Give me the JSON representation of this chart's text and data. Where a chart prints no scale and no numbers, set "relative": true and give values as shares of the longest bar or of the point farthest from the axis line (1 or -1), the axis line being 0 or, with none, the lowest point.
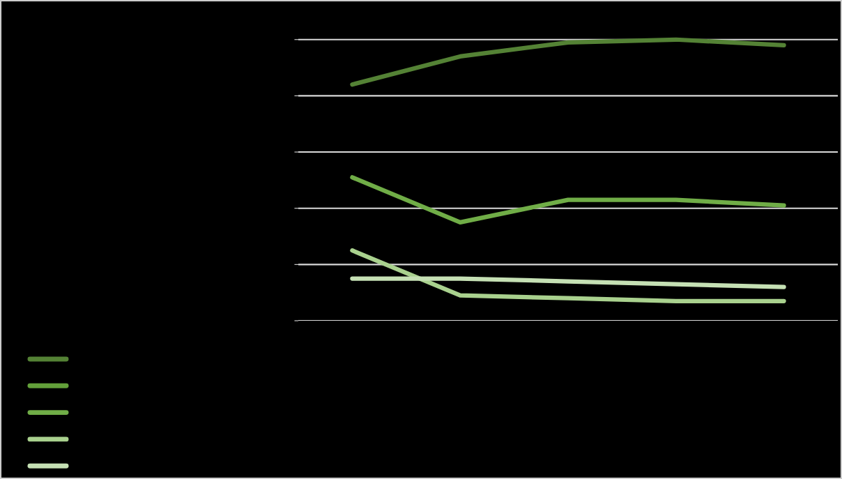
{
  "chart_data": {
    "type": "line",
    "relative": true,
    "categories": [
      null,
      null,
      null,
      null,
      null
    ],
    "series": [
      {
        "color": "#548235",
        "values": [
          0.84,
          0.94,
          0.99,
          1,
          0.98
        ]
      },
      {
        "color": "#63a03a",
        "values": [
          null,
          null,
          null,
          null,
          null
        ]
      },
      {
        "color": "#70ad47",
        "values": [
          0.51,
          0.35,
          0.43,
          0.43,
          0.41
        ]
      },
      {
        "color": "#a9d18e",
        "values": [
          0.25,
          0.09,
          0.08,
          0.07,
          0.07
        ]
      },
      {
        "color": "#c5e0b4",
        "values": [
          0.15,
          0.15,
          0.14,
          0.13,
          0.12
        ]
      }
    ],
    "grid": "y",
    "tick_labels": false,
    "marker": "none",
    "line_style": "solid"
  }
}
